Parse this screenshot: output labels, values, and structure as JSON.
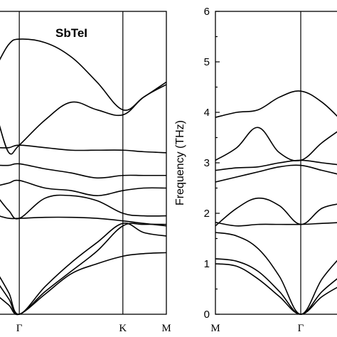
{
  "chart_data": [
    {
      "type": "line",
      "title": "SbTeI",
      "xlabel": "",
      "ylabel": "",
      "ylim": [
        0,
        6
      ],
      "x_ticks": [
        {
          "label": "Γ",
          "x": 0
        },
        {
          "label": "K",
          "x": 1
        },
        {
          "label": "M",
          "x": 1.42
        }
      ],
      "xlim": [
        -0.2,
        1.42
      ],
      "series": [
        {
          "x": [
            -0.2,
            -0.1,
            0,
            0.25,
            0.5,
            0.75,
            1,
            1.2,
            1.42
          ],
          "values": [
            0.78,
            0.42,
            0,
            0.55,
            1.02,
            1.42,
            1.8,
            1.62,
            1.55
          ]
        },
        {
          "x": [
            -0.2,
            -0.1,
            0,
            0.25,
            0.5,
            0.75,
            1,
            1.2,
            1.42
          ],
          "values": [
            0.6,
            0.3,
            0,
            0.45,
            0.85,
            1.25,
            1.75,
            1.78,
            1.78
          ]
        },
        {
          "x": [
            -0.2,
            -0.1,
            0,
            0.25,
            0.5,
            0.75,
            1,
            1.2,
            1.42
          ],
          "values": [
            0.35,
            0.18,
            0,
            0.4,
            0.8,
            1.0,
            1.15,
            1.2,
            1.22
          ]
        },
        {
          "x": [
            -0.2,
            -0.1,
            0,
            0.25,
            0.5,
            0.75,
            1,
            1.2,
            1.42
          ],
          "values": [
            1.95,
            1.9,
            1.9,
            1.92,
            1.92,
            1.9,
            1.85,
            1.8,
            1.75
          ]
        },
        {
          "x": [
            -0.2,
            -0.1,
            0,
            0.25,
            0.5,
            0.75,
            1,
            1.2,
            1.42
          ],
          "values": [
            2.3,
            2.05,
            1.9,
            2.3,
            2.35,
            2.25,
            2.0,
            1.95,
            1.95
          ]
        },
        {
          "x": [
            -0.2,
            -0.1,
            0,
            0.25,
            0.5,
            0.75,
            1,
            1.2,
            1.42
          ],
          "values": [
            2.55,
            2.6,
            2.65,
            2.5,
            2.45,
            2.35,
            2.45,
            2.5,
            2.5
          ]
        },
        {
          "x": [
            -0.2,
            -0.1,
            0,
            0.25,
            0.5,
            0.75,
            1,
            1.2,
            1.42
          ],
          "values": [
            2.95,
            2.95,
            2.98,
            2.88,
            2.8,
            2.7,
            2.75,
            2.75,
            2.75
          ]
        },
        {
          "x": [
            -0.2,
            -0.1,
            0,
            0.25,
            0.5,
            0.75,
            1,
            1.2,
            1.42
          ],
          "values": [
            3.3,
            3.3,
            3.35,
            3.3,
            3.25,
            3.25,
            3.25,
            3.22,
            3.2
          ]
        },
        {
          "x": [
            -0.2,
            -0.1,
            0,
            0.25,
            0.5,
            0.75,
            1,
            1.2,
            1.42
          ],
          "values": [
            3.8,
            3.2,
            3.35,
            3.85,
            4.2,
            4.05,
            3.95,
            4.3,
            4.55
          ]
        },
        {
          "x": [
            -0.2,
            -0.1,
            0,
            0.25,
            0.5,
            0.75,
            1,
            1.2,
            1.42
          ],
          "values": [
            5.0,
            5.35,
            5.45,
            5.38,
            5.1,
            4.6,
            4.05,
            4.3,
            4.6
          ]
        }
      ]
    },
    {
      "type": "line",
      "title": "",
      "xlabel": "",
      "ylabel": "Frequency (THz)",
      "ylim": [
        0,
        6
      ],
      "y_ticks": [
        0,
        1,
        2,
        3,
        4,
        5,
        6
      ],
      "x_ticks": [
        {
          "label": "M",
          "x": 0
        },
        {
          "label": "Γ",
          "x": 1
        }
      ],
      "xlim": [
        0,
        1.5
      ],
      "series": [
        {
          "x": [
            0,
            0.25,
            0.5,
            0.75,
            1,
            1.25,
            1.5
          ],
          "values": [
            1.0,
            0.95,
            0.7,
            0.35,
            0,
            0.35,
            0.6
          ]
        },
        {
          "x": [
            0,
            0.25,
            0.5,
            0.75,
            1,
            1.25,
            1.5
          ],
          "values": [
            1.1,
            1.05,
            0.85,
            0.45,
            0,
            0.45,
            0.8
          ]
        },
        {
          "x": [
            0,
            0.25,
            0.5,
            0.75,
            1,
            1.25,
            1.5
          ],
          "values": [
            1.62,
            1.55,
            1.3,
            0.75,
            0,
            0.7,
            1.2
          ]
        },
        {
          "x": [
            0,
            0.25,
            0.5,
            0.75,
            1,
            1.25,
            1.5
          ],
          "values": [
            1.82,
            1.75,
            1.78,
            1.78,
            1.78,
            1.8,
            1.82
          ]
        },
        {
          "x": [
            0,
            0.25,
            0.5,
            0.75,
            1,
            1.25,
            1.5
          ],
          "values": [
            1.75,
            2.1,
            2.3,
            2.15,
            1.78,
            2.1,
            2.2
          ]
        },
        {
          "x": [
            0,
            0.25,
            0.5,
            0.75,
            1,
            1.25,
            1.5
          ],
          "values": [
            2.62,
            2.72,
            2.82,
            2.92,
            2.95,
            2.85,
            2.75
          ]
        },
        {
          "x": [
            0,
            0.25,
            0.5,
            0.75,
            1,
            1.25,
            1.5
          ],
          "values": [
            2.85,
            2.9,
            2.92,
            3.0,
            3.05,
            3.0,
            2.95
          ]
        },
        {
          "x": [
            0,
            0.25,
            0.5,
            0.75,
            1,
            1.25,
            1.5
          ],
          "values": [
            3.05,
            3.3,
            3.7,
            3.2,
            3.05,
            3.4,
            3.7
          ]
        },
        {
          "x": [
            0,
            0.25,
            0.5,
            0.75,
            1,
            1.25,
            1.5
          ],
          "values": [
            3.9,
            4.0,
            4.05,
            4.3,
            4.42,
            4.2,
            3.8
          ]
        }
      ]
    }
  ]
}
